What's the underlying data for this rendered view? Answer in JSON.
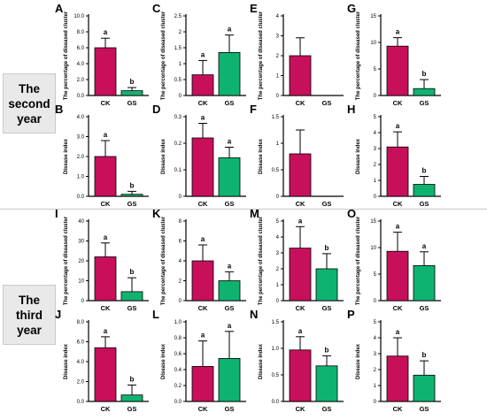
{
  "colors": {
    "ck": "#c8105a",
    "gs": "#0fb370",
    "axis": "#000000"
  },
  "years": [
    {
      "line1": "The",
      "line2": "second",
      "line3": "year"
    },
    {
      "line1": "The",
      "line2": "third",
      "line3": "year"
    }
  ],
  "chart_data": [
    {
      "panel": "A",
      "type": "bar",
      "ylabel": "The percentage of diseased  cluster",
      "categories": [
        "CK",
        "GS"
      ],
      "values": [
        6.0,
        0.6
      ],
      "errors": [
        1.2,
        0.4
      ],
      "letters": [
        "a",
        "b"
      ],
      "ylim": [
        0,
        10
      ],
      "ticks": [
        "0.0",
        "2.0",
        "4.0",
        "6.0",
        "8.0",
        "10.0"
      ]
    },
    {
      "panel": "C",
      "type": "bar",
      "ylabel": "The percentage of diseased  cluster",
      "categories": [
        "CK",
        "GS"
      ],
      "values": [
        0.65,
        1.35
      ],
      "errors": [
        0.45,
        0.55
      ],
      "letters": [
        "a",
        "a"
      ],
      "ylim": [
        0,
        2.5
      ],
      "ticks": [
        "0",
        "0.5",
        "1",
        "1.5",
        "2",
        "2.5"
      ]
    },
    {
      "panel": "E",
      "type": "bar",
      "ylabel": "The percentage of diseased  cluster",
      "categories": [
        "CK",
        "GS"
      ],
      "values": [
        2.0,
        0
      ],
      "errors": [
        0.9,
        0
      ],
      "letters": [
        "",
        ""
      ],
      "ylim": [
        0,
        4
      ],
      "ticks": [
        "0",
        "1",
        "2",
        "3",
        "4"
      ]
    },
    {
      "panel": "G",
      "type": "bar",
      "ylabel": "The percentage of diseased  cluster",
      "categories": [
        "CK",
        "GS"
      ],
      "values": [
        9.3,
        1.3
      ],
      "errors": [
        1.6,
        1.7
      ],
      "letters": [
        "a",
        "b"
      ],
      "ylim": [
        0,
        15
      ],
      "ticks": [
        "0",
        "5",
        "10",
        "15"
      ]
    },
    {
      "panel": "B",
      "type": "bar",
      "ylabel": "Disease index",
      "categories": [
        "CK",
        "GS"
      ],
      "values": [
        2.0,
        0.1
      ],
      "errors": [
        0.8,
        0.15
      ],
      "letters": [
        "a",
        "b"
      ],
      "ylim": [
        0,
        4
      ],
      "ticks": [
        "0.0",
        "1.0",
        "2.0",
        "3.0",
        "4.0"
      ]
    },
    {
      "panel": "D",
      "type": "bar",
      "ylabel": "Disease index",
      "categories": [
        "CK",
        "GS"
      ],
      "values": [
        0.22,
        0.145
      ],
      "errors": [
        0.055,
        0.04
      ],
      "letters": [
        "a",
        "a"
      ],
      "ylim": [
        0,
        0.3
      ],
      "ticks": [
        "0",
        "0.1",
        "0.2",
        "0.3"
      ]
    },
    {
      "panel": "F",
      "type": "bar",
      "ylabel": "Disease index",
      "categories": [
        "CK",
        "GS"
      ],
      "values": [
        0.8,
        0
      ],
      "errors": [
        0.45,
        0
      ],
      "letters": [
        "",
        ""
      ],
      "ylim": [
        0,
        1.5
      ],
      "ticks": [
        "0",
        "0.5",
        "1",
        "1.5"
      ]
    },
    {
      "panel": "H",
      "type": "bar",
      "ylabel": "Disease index",
      "categories": [
        "CK",
        "GS"
      ],
      "values": [
        3.1,
        0.75
      ],
      "errors": [
        0.95,
        0.5
      ],
      "letters": [
        "a",
        "b"
      ],
      "ylim": [
        0,
        5
      ],
      "ticks": [
        "0",
        "1",
        "2",
        "3",
        "4",
        "5"
      ]
    },
    {
      "panel": "I",
      "type": "bar",
      "ylabel": "The percentage of diseased  cluster",
      "categories": [
        "CK",
        "GS"
      ],
      "values": [
        22,
        4.5
      ],
      "errors": [
        7,
        7
      ],
      "letters": [
        "a",
        "b"
      ],
      "ylim": [
        0,
        40
      ],
      "ticks": [
        "0",
        "10",
        "20",
        "30",
        "40"
      ]
    },
    {
      "panel": "K",
      "type": "bar",
      "ylabel": "The percentage of diseased  cluster",
      "categories": [
        "CK",
        "GS"
      ],
      "values": [
        4.0,
        2.0
      ],
      "errors": [
        1.6,
        0.9
      ],
      "letters": [
        "a",
        "a"
      ],
      "ylim": [
        0,
        8
      ],
      "ticks": [
        "0",
        "2",
        "4",
        "6",
        "8"
      ]
    },
    {
      "panel": "M",
      "type": "bar",
      "ylabel": "The percentage of diseased  cluster",
      "categories": [
        "CK",
        "GS"
      ],
      "values": [
        3.3,
        2.0
      ],
      "errors": [
        1.35,
        0.95
      ],
      "letters": [
        "a",
        "b"
      ],
      "ylim": [
        0,
        5
      ],
      "ticks": [
        "0",
        "1",
        "2",
        "3",
        "4",
        "5"
      ]
    },
    {
      "panel": "O",
      "type": "bar",
      "ylabel": "The percentage of diseased  cluster",
      "categories": [
        "CK",
        "GS"
      ],
      "values": [
        9.3,
        6.6
      ],
      "errors": [
        3.6,
        2.6
      ],
      "letters": [
        "a",
        "a"
      ],
      "ylim": [
        0,
        15
      ],
      "ticks": [
        "0",
        "5",
        "10",
        "15"
      ]
    },
    {
      "panel": "J",
      "type": "bar",
      "ylabel": "Disease index",
      "categories": [
        "CK",
        "GS"
      ],
      "values": [
        5.4,
        0.65
      ],
      "errors": [
        1.1,
        1.0
      ],
      "letters": [
        "a",
        "b"
      ],
      "ylim": [
        0,
        8
      ],
      "ticks": [
        "0.0",
        "2.0",
        "4.0",
        "6.0",
        "8.0"
      ]
    },
    {
      "panel": "L",
      "type": "bar",
      "ylabel": "Disease index",
      "categories": [
        "CK",
        "GS"
      ],
      "values": [
        0.44,
        0.54
      ],
      "errors": [
        0.32,
        0.34
      ],
      "letters": [
        "a",
        "a"
      ],
      "ylim": [
        0,
        1
      ],
      "ticks": [
        "0.0",
        "0.2",
        "0.4",
        "0.6",
        "0.8",
        "1.0"
      ]
    },
    {
      "panel": "N",
      "type": "bar",
      "ylabel": "Disease index",
      "categories": [
        "CK",
        "GS"
      ],
      "values": [
        0.97,
        0.67
      ],
      "errors": [
        0.25,
        0.19
      ],
      "letters": [
        "a",
        "b"
      ],
      "ylim": [
        0,
        1.5
      ],
      "ticks": [
        "0.0",
        "0.5",
        "1.0",
        "1.5"
      ]
    },
    {
      "panel": "P",
      "type": "bar",
      "ylabel": "Disease index",
      "categories": [
        "CK",
        "GS"
      ],
      "values": [
        2.85,
        1.65
      ],
      "errors": [
        1.15,
        0.9
      ],
      "letters": [
        "a",
        "b"
      ],
      "ylim": [
        0,
        5
      ],
      "ticks": [
        "0",
        "1",
        "2",
        "3",
        "4",
        "5"
      ]
    }
  ]
}
